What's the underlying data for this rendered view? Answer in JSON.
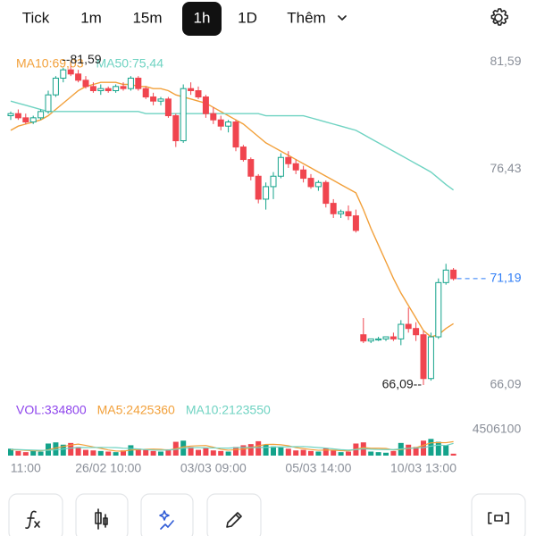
{
  "tabs": [
    "Tick",
    "1m",
    "15m",
    "1h",
    "1D",
    "Thêm"
  ],
  "active_tab": 3,
  "chart_data": [
    {
      "type": "candlestick",
      "up_color": "#14a38b",
      "down_color": "#f0454f",
      "open": [
        79.0,
        79.1,
        78.9,
        78.7,
        78.9,
        79.2,
        80.0,
        80.8,
        81.2,
        81.0,
        80.7,
        80.4,
        80.2,
        80.3,
        80.2,
        80.4,
        80.3,
        80.8,
        80.3,
        79.9,
        79.7,
        79.8,
        79.0,
        77.8,
        80.3,
        80.2,
        79.9,
        79.1,
        78.8,
        78.5,
        78.7,
        77.5,
        76.9,
        76.1,
        75.0,
        75.6,
        76.1,
        77.0,
        76.7,
        76.4,
        76.0,
        75.6,
        75.8,
        74.8,
        74.3,
        74.4,
        74.2,
        68.5,
        68.2,
        68.3,
        68.3,
        68.4,
        68.3,
        69.0,
        68.8,
        68.5,
        66.4,
        68.4,
        71.0,
        71.6
      ],
      "high": [
        79.2,
        79.3,
        79.1,
        79.0,
        79.3,
        80.2,
        80.9,
        81.3,
        81.59,
        81.2,
        80.9,
        80.6,
        80.5,
        80.4,
        80.5,
        80.6,
        80.9,
        80.9,
        80.4,
        80.1,
        79.9,
        79.9,
        79.1,
        80.5,
        80.6,
        80.4,
        80.0,
        79.4,
        79.0,
        78.8,
        78.8,
        77.6,
        77.0,
        76.2,
        75.8,
        76.3,
        77.2,
        77.3,
        76.9,
        76.6,
        76.2,
        75.9,
        75.9,
        75.0,
        74.5,
        74.7,
        74.5,
        69.3,
        68.3,
        68.4,
        68.4,
        68.6,
        69.2,
        69.8,
        69.1,
        68.7,
        68.6,
        71.2,
        71.9,
        71.7
      ],
      "low": [
        78.8,
        78.8,
        78.6,
        78.6,
        78.8,
        79.1,
        79.9,
        80.6,
        80.9,
        80.6,
        80.3,
        80.1,
        80.0,
        80.1,
        80.1,
        80.2,
        80.2,
        80.2,
        79.8,
        79.5,
        79.5,
        78.9,
        77.5,
        77.7,
        80.0,
        79.8,
        78.9,
        78.6,
        78.3,
        78.2,
        77.3,
        76.8,
        75.9,
        74.8,
        74.5,
        75.0,
        76.0,
        76.5,
        76.2,
        75.8,
        75.5,
        75.4,
        74.6,
        74.1,
        74.1,
        74.0,
        73.4,
        68.1,
        68.1,
        68.2,
        68.2,
        68.2,
        68.0,
        68.6,
        68.2,
        66.09,
        66.3,
        68.3,
        70.9,
        71.1
      ],
      "close": [
        79.1,
        78.9,
        78.7,
        78.9,
        79.2,
        80.0,
        80.8,
        81.2,
        81.0,
        80.7,
        80.4,
        80.2,
        80.3,
        80.2,
        80.4,
        80.3,
        80.8,
        80.3,
        79.9,
        79.7,
        79.8,
        79.0,
        77.8,
        80.3,
        80.2,
        79.9,
        79.1,
        78.8,
        78.5,
        78.7,
        77.5,
        76.9,
        76.1,
        75.0,
        75.6,
        76.1,
        77.0,
        76.7,
        76.4,
        76.0,
        75.6,
        75.8,
        74.8,
        74.3,
        74.4,
        74.2,
        73.5,
        68.2,
        68.3,
        68.3,
        68.4,
        68.3,
        69.0,
        68.8,
        68.5,
        66.4,
        68.4,
        71.0,
        71.6,
        71.19
      ],
      "series": [
        {
          "name": "MA10:69,03",
          "color": "#f2a03a",
          "values": [
            78.3,
            78.5,
            78.6,
            78.7,
            78.8,
            79.0,
            79.3,
            79.6,
            79.9,
            80.2,
            80.4,
            80.5,
            80.6,
            80.6,
            80.6,
            80.5,
            80.5,
            80.4,
            80.4,
            80.3,
            80.3,
            80.2,
            80.0,
            79.9,
            79.8,
            79.7,
            79.6,
            79.4,
            79.2,
            79.0,
            78.8,
            78.6,
            78.3,
            78.0,
            77.7,
            77.5,
            77.3,
            77.1,
            76.9,
            76.7,
            76.5,
            76.3,
            76.1,
            75.9,
            75.7,
            75.5,
            75.3,
            74.5,
            73.6,
            72.8,
            72.0,
            71.2,
            70.5,
            69.9,
            69.3,
            68.7,
            68.4,
            68.5,
            68.8,
            69.03
          ]
        },
        {
          "name": "MA50:75,44",
          "color": "#6fd3c2",
          "values": [
            79.7,
            79.6,
            79.5,
            79.4,
            79.3,
            79.2,
            79.2,
            79.2,
            79.2,
            79.2,
            79.2,
            79.2,
            79.2,
            79.2,
            79.2,
            79.2,
            79.2,
            79.2,
            79.1,
            79.1,
            79.1,
            79.1,
            79.1,
            79.1,
            79.1,
            79.1,
            79.1,
            79.1,
            79.1,
            79.1,
            79.1,
            79.1,
            79.1,
            79.1,
            79.0,
            79.0,
            79.0,
            79.0,
            79.0,
            79.0,
            78.9,
            78.8,
            78.7,
            78.6,
            78.5,
            78.4,
            78.3,
            78.1,
            77.9,
            77.7,
            77.5,
            77.3,
            77.1,
            76.9,
            76.7,
            76.5,
            76.3,
            76.0,
            75.7,
            75.44
          ]
        }
      ],
      "ylim": [
        65.49,
        82.62
      ],
      "yticks": [
        {
          "value": 81.59,
          "label": "81,59"
        },
        {
          "value": 76.43,
          "label": "76,43"
        },
        {
          "value": 66.09,
          "label": "66,09"
        }
      ],
      "current_price": {
        "value": 71.19,
        "label": "71,19",
        "color": "#2f7df6"
      },
      "high_mark": {
        "value": 81.59,
        "label": "--81,59"
      },
      "low_mark": {
        "value": 66.09,
        "label": "66,09--"
      }
    },
    {
      "type": "bar",
      "categories": [
        null,
        null,
        "11:00",
        null,
        null,
        null,
        null,
        null,
        null,
        null,
        null,
        null,
        null,
        "26/02 10:00",
        null,
        null,
        null,
        null,
        null,
        null,
        null,
        null,
        null,
        null,
        null,
        null,
        null,
        "03/03 09:00",
        null,
        null,
        null,
        null,
        null,
        null,
        null,
        null,
        null,
        null,
        null,
        null,
        null,
        "05/03 14:00",
        null,
        null,
        null,
        null,
        null,
        null,
        null,
        null,
        null,
        null,
        null,
        null,
        null,
        "10/03 13:00",
        null,
        null,
        null,
        null
      ],
      "series": [
        {
          "name": "VOL:334800",
          "color": "#8e44ec",
          "values": [
            1200000,
            800000,
            600000,
            900000,
            700000,
            2100000,
            2300000,
            1900000,
            2200000,
            1500000,
            1000000,
            900000,
            800000,
            700000,
            600000,
            900000,
            1800000,
            1200000,
            1000000,
            800000,
            700000,
            1100000,
            2400000,
            2600000,
            1500000,
            1000000,
            1300000,
            900000,
            800000,
            700000,
            1500000,
            1800000,
            2000000,
            2500000,
            1900000,
            1600000,
            1400000,
            1200000,
            900000,
            1000000,
            800000,
            700000,
            1300000,
            900000,
            600000,
            700000,
            2100000,
            2300000,
            700000,
            600000,
            500000,
            800000,
            2200000,
            1900000,
            1500000,
            2600000,
            2900000,
            2400000,
            1800000,
            334800
          ]
        },
        {
          "name": "MA5:2425360",
          "color": "#f2a03a",
          "values": [
            1000000,
            1000000,
            900000,
            850000,
            840000,
            1020000,
            1320000,
            1580000,
            1840000,
            2000000,
            1780000,
            1500000,
            1260000,
            980000,
            800000,
            780000,
            960000,
            1040000,
            1100000,
            1140000,
            1100000,
            960000,
            1200000,
            1520000,
            1660000,
            1720000,
            1760000,
            1460000,
            1100000,
            940000,
            1040000,
            1140000,
            1360000,
            1700000,
            1940000,
            1960000,
            1880000,
            1720000,
            1400000,
            1220000,
            1060000,
            920000,
            980000,
            940000,
            860000,
            840000,
            1120000,
            1400000,
            1280000,
            1280000,
            1240000,
            980000,
            1060000,
            1260000,
            1380000,
            1800000,
            2220000,
            2260000,
            2240000,
            2425360
          ]
        },
        {
          "name": "MA10:2123550",
          "color": "#6fd3c2",
          "values": [
            1100000,
            1050000,
            1000000,
            950000,
            920000,
            930000,
            1000000,
            1150000,
            1300000,
            1420000,
            1400000,
            1410000,
            1420000,
            1410000,
            1400000,
            1290000,
            1230000,
            1150000,
            1040000,
            960000,
            940000,
            970000,
            1080000,
            1290000,
            1380000,
            1410000,
            1360000,
            1330000,
            1310000,
            1300000,
            1380000,
            1450000,
            1410000,
            1400000,
            1440000,
            1480000,
            1510000,
            1540000,
            1550000,
            1580000,
            1500000,
            1400000,
            1300000,
            1170000,
            1030000,
            950000,
            1050000,
            1190000,
            1110000,
            1060000,
            1050000,
            1050000,
            1160000,
            1270000,
            1330000,
            1400000,
            1640000,
            1830000,
            1760000,
            2123550
          ]
        }
      ],
      "ylim": [
        0,
        4506100
      ],
      "yticks": [
        4506100
      ]
    }
  ]
}
